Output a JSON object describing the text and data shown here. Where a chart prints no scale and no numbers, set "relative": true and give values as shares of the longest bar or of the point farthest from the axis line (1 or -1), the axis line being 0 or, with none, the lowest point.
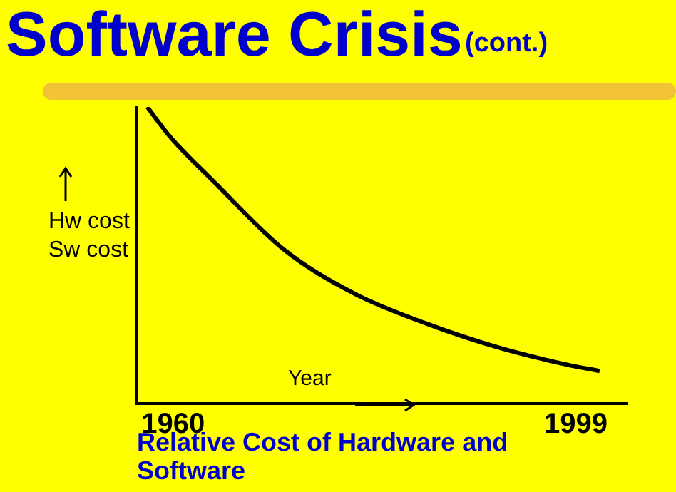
{
  "chart_data": {
    "type": "line",
    "title": "Software Crisis",
    "subtitle": "(cont.)",
    "xlabel": "Year",
    "ylabel": "Hw cost\nSw cost",
    "annotations": [
      "Relative Cost of Hardware and Software"
    ],
    "relative": true,
    "x": [
      1957.5,
      1959.7,
      1963.9,
      1970.7,
      1977.6,
      1984.5,
      1991.4,
      1998.3,
      2001.3
    ],
    "series": [
      {
        "color": "#000000",
        "values": [
          1,
          0.9,
          0.75,
          0.52,
          0.37,
          0.27,
          0.19,
          0.13,
          0.11
        ]
      }
    ],
    "xlim": [
      1956.5,
      2004
    ],
    "xticks": [
      1960,
      1999
    ],
    "grid": false,
    "legend": false,
    "marker": "none",
    "line_style": "solid"
  }
}
